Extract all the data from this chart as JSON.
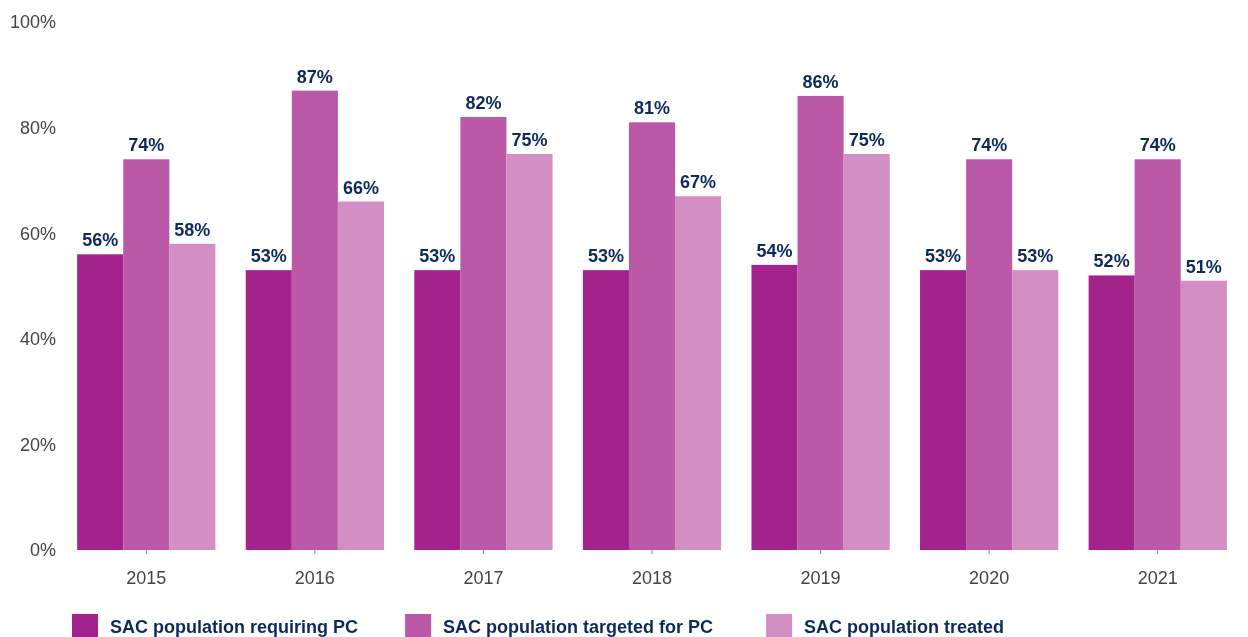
{
  "chart_data": {
    "type": "bar",
    "categories": [
      "2015",
      "2016",
      "2017",
      "2018",
      "2019",
      "2020",
      "2021"
    ],
    "series": [
      {
        "name": "SAC population requiring PC",
        "color": "#a3228c",
        "values": [
          56,
          53,
          53,
          53,
          54,
          53,
          52
        ],
        "value_labels": [
          "56%",
          "53%",
          "53%",
          "53%",
          "54%",
          "53%",
          "52%"
        ]
      },
      {
        "name": "SAC population targeted for PC",
        "color": "#bb58a8",
        "values": [
          74,
          87,
          82,
          81,
          86,
          74,
          74
        ],
        "value_labels": [
          "74%",
          "87%",
          "82%",
          "81%",
          "86%",
          "74%",
          "74%"
        ]
      },
      {
        "name": "SAC population treated",
        "color": "#d38fc4",
        "values": [
          58,
          66,
          75,
          67,
          75,
          53,
          51
        ],
        "value_labels": [
          "58%",
          "66%",
          "75%",
          "67%",
          "75%",
          "53%",
          "51%"
        ]
      }
    ],
    "ylim": [
      0,
      100
    ],
    "yticks": [
      {
        "value": 0,
        "label": "0%"
      },
      {
        "value": 20,
        "label": "20%"
      },
      {
        "value": 40,
        "label": "40%"
      },
      {
        "value": 60,
        "label": "60%"
      },
      {
        "value": 80,
        "label": "80%"
      },
      {
        "value": 100,
        "label": "100%"
      }
    ],
    "grid": false,
    "legend": "bottom"
  }
}
